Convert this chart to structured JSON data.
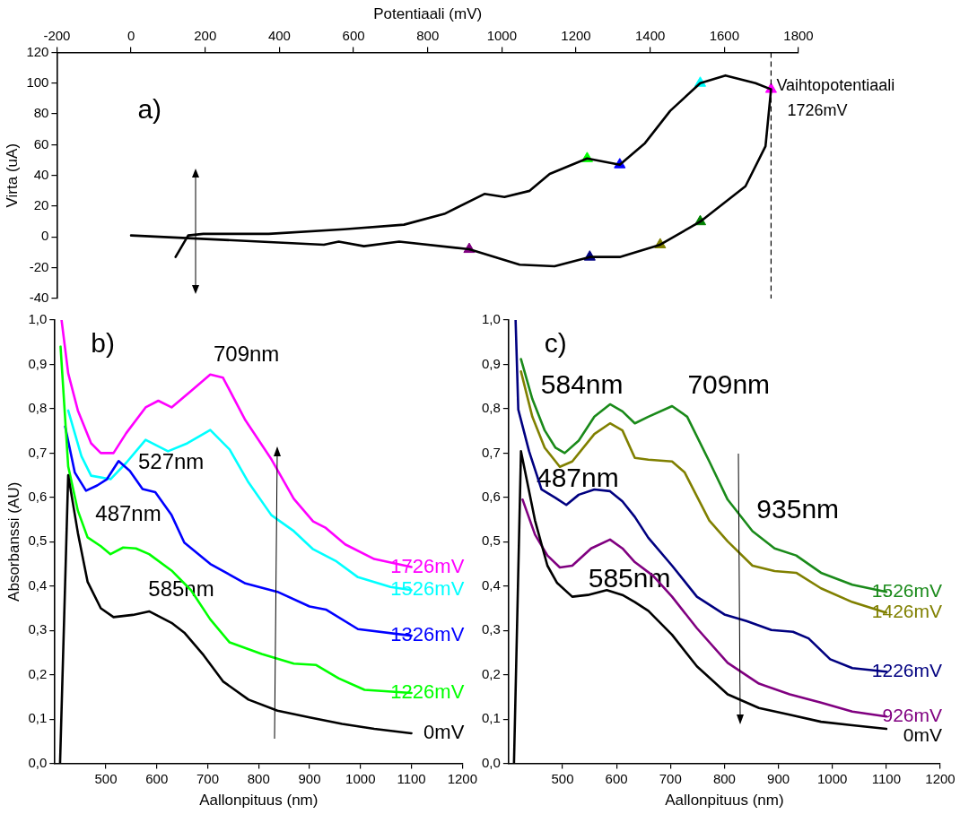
{
  "chart_data": [
    {
      "type": "line",
      "title": "a)",
      "xlabel": "Potentiaali (mV)",
      "ylabel": "Virta (uA)",
      "xlim": [
        -200,
        1800
      ],
      "xticks": [
        -200,
        0,
        200,
        400,
        600,
        800,
        1000,
        1200,
        1400,
        1600,
        1800
      ],
      "ylim": [
        -40,
        120
      ],
      "yticks": [
        -40,
        -20,
        0,
        20,
        40,
        60,
        80,
        100,
        120
      ],
      "grid": false,
      "legend": false,
      "marker": "none",
      "ref_lines": [
        {
          "axis": "x",
          "value": 1726,
          "label": "Vaihtopotentiaali 1726mV",
          "line_style": "dashed",
          "color": "#000000"
        }
      ],
      "series": [
        {
          "color": "#000000",
          "x": [
            120,
            154,
            195,
            371,
            574,
            736,
            845,
            953,
            1007,
            1075,
            1129,
            1230,
            1318,
            1386,
            1454,
            1535,
            1603,
            1684,
            1726,
            1711,
            1657,
            1535,
            1427,
            1318,
            1237,
            1142,
            1048,
            912,
            723,
            628,
            560,
            520,
            0
          ],
          "values": [
            -13,
            1,
            2,
            2,
            5,
            8,
            15,
            28,
            26,
            30,
            41,
            51,
            47,
            61,
            82,
            100,
            105,
            100,
            96,
            59,
            33,
            10,
            -5,
            -13,
            -13,
            -19,
            -18,
            -8,
            -3,
            -6,
            -3,
            -5,
            1
          ]
        },
        {
          "type": "scatter",
          "marker": "triangle",
          "x": [
            1230,
            1318,
            1535,
            1726
          ],
          "values": [
            51,
            47,
            100,
            96
          ],
          "colors": [
            "#00ff00",
            "#0000ff",
            "#00ffff",
            "#ff00ff"
          ]
        },
        {
          "type": "scatter",
          "marker": "triangle",
          "x": [
            912,
            1237,
            1427,
            1535
          ],
          "values": [
            -8,
            -13,
            -5,
            10
          ],
          "colors": [
            "#800080",
            "#000080",
            "#808000",
            "#008000"
          ]
        }
      ]
    },
    {
      "type": "line",
      "title": "b)",
      "xlabel": "Aallonpituus (nm)",
      "ylabel": "Absorbanssi (AU)",
      "xlim": [
        400,
        1200
      ],
      "xticks": [
        500,
        600,
        700,
        800,
        900,
        1000,
        1100,
        1200
      ],
      "ylim": [
        0,
        1
      ],
      "yticks": [
        {
          "value": 0,
          "label": "0,0"
        },
        {
          "value": 0.1,
          "label": "0,1"
        },
        {
          "value": 0.2,
          "label": "0,2"
        },
        {
          "value": 0.3,
          "label": "0,3"
        },
        {
          "value": 0.4,
          "label": "0,4"
        },
        {
          "value": 0.5,
          "label": "0,5"
        },
        {
          "value": 0.6,
          "label": "0,6"
        },
        {
          "value": 0.7,
          "label": "0,7"
        },
        {
          "value": 0.8,
          "label": "0,8"
        },
        {
          "value": 0.9,
          "label": "0,9"
        },
        {
          "value": 1,
          "label": "1,0"
        }
      ],
      "grid": false,
      "legend": false,
      "marker": "none",
      "annotations": [
        "709nm",
        "527nm",
        "487nm",
        "585nm"
      ],
      "series": [
        {
          "name": "0mV",
          "color": "#000000",
          "x": [
            410,
            426,
            445,
            464,
            490,
            515,
            553,
            585,
            629,
            654,
            692,
            730,
            780,
            837,
            900,
            964,
            1027,
            1100
          ],
          "values": [
            0,
            0.65,
            0.52,
            0.41,
            0.35,
            0.33,
            0.335,
            0.343,
            0.317,
            0.295,
            0.244,
            0.185,
            0.144,
            0.119,
            0.104,
            0.089,
            0.078,
            0.068
          ]
        },
        {
          "name": "1226mV",
          "color": "#00ff00",
          "x": [
            411,
            426,
            445,
            464,
            490,
            509,
            534,
            559,
            585,
            629,
            667,
            705,
            743,
            806,
            869,
            913,
            957,
            1008,
            1100
          ],
          "values": [
            0.94,
            0.67,
            0.57,
            0.51,
            0.49,
            0.472,
            0.487,
            0.485,
            0.472,
            0.435,
            0.391,
            0.325,
            0.273,
            0.247,
            0.225,
            0.222,
            0.192,
            0.166,
            0.159
          ]
        },
        {
          "name": "1326mV",
          "color": "#0000ff",
          "x": [
            420,
            439,
            461,
            483,
            502,
            525,
            547,
            572,
            597,
            629,
            654,
            705,
            774,
            837,
            900,
            932,
            995,
            1100
          ],
          "values": [
            0.76,
            0.656,
            0.615,
            0.627,
            0.641,
            0.682,
            0.66,
            0.619,
            0.612,
            0.56,
            0.498,
            0.45,
            0.406,
            0.387,
            0.354,
            0.347,
            0.303,
            0.288
          ]
        },
        {
          "name": "1526mV",
          "color": "#00ffff",
          "x": [
            426,
            452,
            471,
            509,
            540,
            578,
            622,
            660,
            705,
            743,
            780,
            825,
            869,
            907,
            951,
            995,
            1059,
            1100
          ],
          "values": [
            0.796,
            0.693,
            0.649,
            0.641,
            0.678,
            0.73,
            0.704,
            0.722,
            0.752,
            0.708,
            0.634,
            0.56,
            0.524,
            0.483,
            0.457,
            0.42,
            0.398,
            0.391
          ]
        },
        {
          "name": "1726mV",
          "color": "#ff00ff",
          "x": [
            413,
            426,
            445,
            471,
            490,
            515,
            540,
            578,
            603,
            629,
            667,
            705,
            730,
            774,
            825,
            869,
            907,
            932,
            970,
            1027,
            1100
          ],
          "values": [
            1,
            0.88,
            0.796,
            0.722,
            0.7,
            0.7,
            0.745,
            0.803,
            0.818,
            0.803,
            0.84,
            0.877,
            0.87,
            0.774,
            0.686,
            0.597,
            0.546,
            0.531,
            0.494,
            0.461,
            0.443
          ]
        }
      ]
    },
    {
      "type": "line",
      "title": "c)",
      "xlabel": "Aallonpituus (nm)",
      "xlim": [
        400,
        1200
      ],
      "xticks": [
        500,
        600,
        700,
        800,
        900,
        1000,
        1100,
        1200
      ],
      "ylim": [
        0,
        1
      ],
      "yticks": [
        {
          "value": 0,
          "label": "0,0"
        },
        {
          "value": 0.1,
          "label": "0,1"
        },
        {
          "value": 0.2,
          "label": "0,2"
        },
        {
          "value": 0.3,
          "label": "0,3"
        },
        {
          "value": 0.4,
          "label": "0,4"
        },
        {
          "value": 0.5,
          "label": "0,5"
        },
        {
          "value": 0.6,
          "label": "0,6"
        },
        {
          "value": 0.7,
          "label": "0,7"
        },
        {
          "value": 0.8,
          "label": "0,8"
        },
        {
          "value": 0.9,
          "label": "0,9"
        },
        {
          "value": 1,
          "label": "1,0"
        }
      ],
      "grid": false,
      "legend": false,
      "marker": "none",
      "annotations": [
        "584nm",
        "709nm",
        "487nm",
        "935nm",
        "585nm"
      ],
      "series": [
        {
          "name": "0mV",
          "color": "#000000",
          "x": [
            410,
            423,
            449,
            472,
            490,
            518,
            547,
            582,
            611,
            634,
            659,
            703,
            749,
            806,
            864,
            921,
            979,
            1037,
            1100
          ],
          "values": [
            0,
            0.704,
            0.548,
            0.446,
            0.407,
            0.376,
            0.38,
            0.391,
            0.38,
            0.364,
            0.344,
            0.29,
            0.219,
            0.156,
            0.125,
            0.11,
            0.094,
            0.086,
            0.078
          ]
        },
        {
          "name": "926mV",
          "color": "#800080",
          "x": [
            426,
            449,
            472,
            495,
            518,
            553,
            588,
            611,
            634,
            668,
            703,
            749,
            806,
            864,
            921,
            979,
            1037,
            1100
          ],
          "values": [
            0.595,
            0.516,
            0.469,
            0.442,
            0.446,
            0.485,
            0.505,
            0.485,
            0.454,
            0.423,
            0.376,
            0.305,
            0.227,
            0.18,
            0.156,
            0.137,
            0.117,
            0.106
          ]
        },
        {
          "name": "1226mV",
          "color": "#000080",
          "x": [
            413,
            418,
            438,
            461,
            487,
            507,
            530,
            559,
            588,
            611,
            634,
            659,
            703,
            749,
            800,
            841,
            887,
            927,
            956,
            996,
            1037,
            1100
          ],
          "values": [
            1,
            0.798,
            0.704,
            0.618,
            0.599,
            0.583,
            0.606,
            0.618,
            0.614,
            0.591,
            0.556,
            0.509,
            0.446,
            0.376,
            0.336,
            0.321,
            0.301,
            0.297,
            0.282,
            0.235,
            0.215,
            0.207
          ]
        },
        {
          "name": "1426mV",
          "color": "#808000",
          "x": [
            423,
            444,
            467,
            495,
            518,
            559,
            588,
            611,
            634,
            659,
            703,
            726,
            772,
            806,
            852,
            893,
            933,
            979,
            1037,
            1100
          ],
          "values": [
            0.884,
            0.782,
            0.712,
            0.669,
            0.681,
            0.743,
            0.767,
            0.751,
            0.689,
            0.685,
            0.681,
            0.657,
            0.548,
            0.501,
            0.446,
            0.434,
            0.43,
            0.395,
            0.364,
            0.34
          ]
        },
        {
          "name": "1526mV",
          "color": "#1a8a1a",
          "x": [
            423,
            444,
            467,
            487,
            504,
            530,
            559,
            588,
            611,
            634,
            659,
            703,
            731,
            772,
            806,
            852,
            893,
            933,
            979,
            1037,
            1100
          ],
          "values": [
            0.912,
            0.822,
            0.751,
            0.712,
            0.7,
            0.728,
            0.782,
            0.81,
            0.794,
            0.767,
            0.782,
            0.806,
            0.782,
            0.681,
            0.595,
            0.524,
            0.485,
            0.469,
            0.43,
            0.403,
            0.387
          ]
        }
      ]
    }
  ]
}
